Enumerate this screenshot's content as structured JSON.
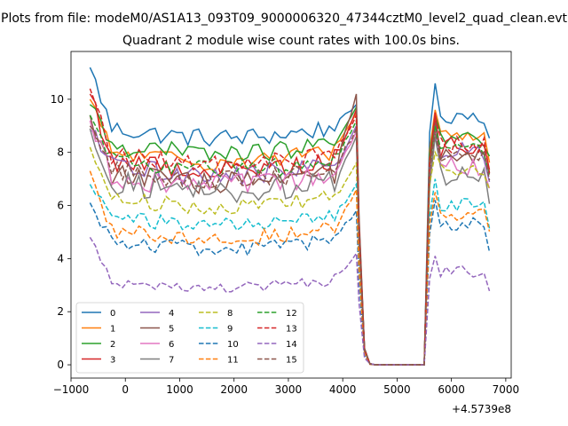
{
  "figure": {
    "suptitle": "Plots from file: modeM0/AS1A13_093T09_9000006320_47344cztM0_level2_quad_clean.evt",
    "title": "Quadrant 2 module wise count rates with 100.0s bins.",
    "offset_label": "+4.5739e8"
  },
  "chart_data": {
    "type": "line",
    "title": "Quadrant 2 module wise count rates with 100.0s bins.",
    "xlabel": "",
    "ylabel": "",
    "x_offset": 457390000,
    "xlim": [
      -1000,
      7100
    ],
    "ylim": [
      -0.5,
      11.8
    ],
    "xticks": [
      -1000,
      0,
      1000,
      2000,
      3000,
      4000,
      5000,
      6000,
      7000
    ],
    "xtick_labels": [
      "−1000",
      "0",
      "1000",
      "2000",
      "3000",
      "4000",
      "5000",
      "6000",
      "7000"
    ],
    "yticks": [
      0,
      2,
      4,
      6,
      8,
      10
    ],
    "ytick_labels": [
      "0",
      "2",
      "4",
      "6",
      "8",
      "10"
    ],
    "grid": false,
    "legend_position": "lower-left",
    "legend_columns": 4,
    "x_segments": {
      "pre": {
        "start": -650,
        "step": 100,
        "count": 50
      },
      "ramp": [
        4300,
        4400,
        4500
      ],
      "gap": {
        "start": 4600,
        "end": 5500,
        "value": 0
      },
      "post": {
        "start": 5500,
        "step": 100,
        "count": 13
      }
    },
    "series": [
      {
        "name": "0",
        "color": "#1f77b4",
        "style": "solid",
        "base": 8.9,
        "start": 11.2,
        "noise": 0.3,
        "peak": 9.8,
        "post_level": 9.4,
        "post_peak": 10.6
      },
      {
        "name": "1",
        "color": "#ff7f0e",
        "style": "solid",
        "base": 8.0,
        "start": 10.0,
        "noise": 0.3,
        "peak": 9.5,
        "post_level": 8.7,
        "post_peak": 9.6
      },
      {
        "name": "2",
        "color": "#2ca02c",
        "style": "solid",
        "base": 8.3,
        "start": 9.8,
        "noise": 0.3,
        "peak": 9.7,
        "post_level": 8.5,
        "post_peak": 9.4
      },
      {
        "name": "3",
        "color": "#d62728",
        "style": "solid",
        "base": 7.7,
        "start": 10.2,
        "noise": 0.35,
        "peak": 9.6,
        "post_level": 8.2,
        "post_peak": 9.5
      },
      {
        "name": "4",
        "color": "#9467bd",
        "style": "solid",
        "base": 7.5,
        "start": 8.8,
        "noise": 0.35,
        "peak": 9.0,
        "post_level": 8.0,
        "post_peak": 9.0
      },
      {
        "name": "5",
        "color": "#8c564b",
        "style": "solid",
        "base": 7.2,
        "start": 9.4,
        "noise": 0.35,
        "peak": 10.2,
        "post_level": 7.8,
        "post_peak": 9.2
      },
      {
        "name": "6",
        "color": "#e377c2",
        "style": "solid",
        "base": 7.1,
        "start": 9.2,
        "noise": 0.35,
        "peak": 8.8,
        "post_level": 7.5,
        "post_peak": 8.8
      },
      {
        "name": "7",
        "color": "#7f7f7f",
        "style": "solid",
        "base": 6.9,
        "start": 8.9,
        "noise": 0.4,
        "peak": 8.6,
        "post_level": 7.2,
        "post_peak": 8.6
      },
      {
        "name": "8",
        "color": "#bcbd22",
        "style": "dashed",
        "base": 6.3,
        "start": 8.2,
        "noise": 0.25,
        "peak": 7.6,
        "post_level": 7.3,
        "post_peak": 8.0
      },
      {
        "name": "9",
        "color": "#17becf",
        "style": "dashed",
        "base": 5.6,
        "start": 6.8,
        "noise": 0.25,
        "peak": 6.8,
        "post_level": 6.0,
        "post_peak": 7.0
      },
      {
        "name": "10",
        "color": "#1f77b4",
        "style": "dashed",
        "base": 4.7,
        "start": 6.1,
        "noise": 0.25,
        "peak": 5.8,
        "post_level": 5.3,
        "post_peak": 6.2
      },
      {
        "name": "11",
        "color": "#ff7f0e",
        "style": "dashed",
        "base": 5.1,
        "start": 7.3,
        "noise": 0.25,
        "peak": 6.6,
        "post_level": 5.7,
        "post_peak": 6.5
      },
      {
        "name": "12",
        "color": "#2ca02c",
        "style": "dashed",
        "base": 7.7,
        "start": 9.4,
        "noise": 0.3,
        "peak": 9.2,
        "post_level": 8.0,
        "post_peak": 9.0
      },
      {
        "name": "13",
        "color": "#d62728",
        "style": "dashed",
        "base": 7.9,
        "start": 10.4,
        "noise": 0.3,
        "peak": 9.4,
        "post_level": 8.3,
        "post_peak": 9.3
      },
      {
        "name": "14",
        "color": "#9467bd",
        "style": "dashed",
        "base": 3.2,
        "start": 4.8,
        "noise": 0.2,
        "peak": 4.2,
        "post_level": 3.5,
        "post_peak": 4.1
      },
      {
        "name": "15",
        "color": "#8c564b",
        "style": "dashed",
        "base": 7.3,
        "start": 9.0,
        "noise": 0.3,
        "peak": 8.9,
        "post_level": 7.8,
        "post_peak": 8.8
      }
    ]
  }
}
